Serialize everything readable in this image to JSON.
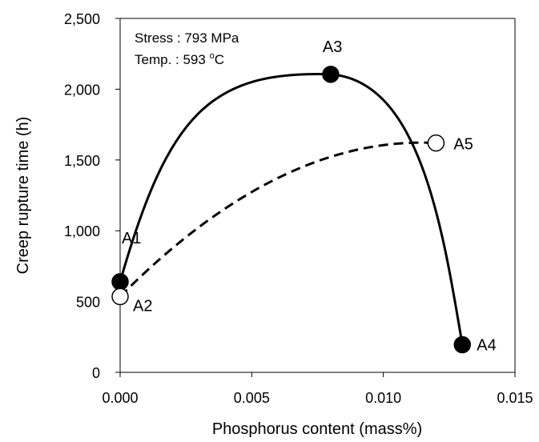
{
  "chart_data": {
    "type": "scatter",
    "xlabel": "Phosphorus content (mass%)",
    "ylabel": "Creep rupture time (h)",
    "xlim": [
      0,
      0.015
    ],
    "ylim": [
      0,
      2500
    ],
    "x_ticks": [
      "0.000",
      "0.005",
      "0.010",
      "0.015"
    ],
    "y_ticks": [
      "0",
      "500",
      "1,000",
      "1,500",
      "2,000",
      "2,500"
    ],
    "grid": false,
    "annotation": {
      "line1": "Stress : 793 MPa",
      "line2_prefix": "Temp. : 593 ",
      "line2_sup": "o",
      "line2_suffix": "C"
    },
    "series": [
      {
        "style": "filled-solid",
        "points": [
          {
            "label": "A1",
            "x": 0.0,
            "y": 640
          },
          {
            "label": "A3",
            "x": 0.008,
            "y": 2105
          },
          {
            "label": "A4",
            "x": 0.013,
            "y": 195
          }
        ]
      },
      {
        "style": "open-dashed",
        "points": [
          {
            "label": "A2",
            "x": 0.0,
            "y": 535
          },
          {
            "label": "A5",
            "x": 0.012,
            "y": 1620
          }
        ]
      }
    ]
  }
}
